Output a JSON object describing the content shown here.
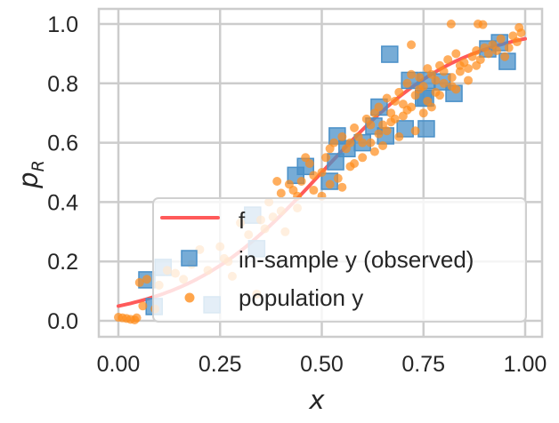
{
  "chart_data": {
    "type": "scatter",
    "title": "",
    "xlabel": "x",
    "ylabel": "p",
    "ylabel_subscript": "R",
    "xlim": [
      -0.05,
      1.04
    ],
    "ylim": [
      -0.05,
      1.05
    ],
    "grid": true,
    "xticks": [
      0.0,
      0.25,
      0.5,
      0.75,
      1.0
    ],
    "xtick_labels": [
      "0.00",
      "0.25",
      "0.50",
      "0.75",
      "1.00"
    ],
    "yticks": [
      0.0,
      0.2,
      0.4,
      0.6,
      0.8,
      1.0
    ],
    "ytick_labels": [
      "0.0",
      "0.2",
      "0.4",
      "0.6",
      "0.8",
      "1.0"
    ],
    "legend_position": "lower-right",
    "colors": {
      "f": "#ff5a5a",
      "in_sample": "#4a90c8",
      "population": "#ff8c1a",
      "grid": "#cccccc"
    },
    "series": [
      {
        "name": "f",
        "kind": "line",
        "model": "logistic",
        "midpoint": 0.5,
        "steepness": 5.9,
        "x": [
          0.0,
          0.05,
          0.1,
          0.15,
          0.2,
          0.25,
          0.3,
          0.35,
          0.4,
          0.45,
          0.5,
          0.55,
          0.6,
          0.65,
          0.7,
          0.75,
          0.8,
          0.85,
          0.9,
          0.95,
          1.0
        ],
        "y": [
          0.05,
          0.066,
          0.086,
          0.112,
          0.146,
          0.186,
          0.235,
          0.291,
          0.356,
          0.426,
          0.5,
          0.574,
          0.644,
          0.709,
          0.765,
          0.814,
          0.854,
          0.888,
          0.914,
          0.934,
          0.95
        ]
      },
      {
        "name": "in-sample y (observed)",
        "kind": "square",
        "x": [
          0.07,
          0.11,
          0.088,
          0.23,
          0.33,
          0.34,
          0.436,
          0.46,
          0.519,
          0.534,
          0.538,
          0.562,
          0.6,
          0.628,
          0.641,
          0.657,
          0.667,
          0.705,
          0.716,
          0.75,
          0.755,
          0.757,
          0.759,
          0.796,
          0.825,
          0.908,
          0.937,
          0.956
        ],
        "y": [
          0.138,
          0.18,
          0.048,
          0.054,
          0.356,
          0.243,
          0.49,
          0.52,
          0.47,
          0.536,
          0.623,
          0.58,
          0.6,
          0.656,
          0.72,
          0.623,
          0.898,
          0.647,
          0.81,
          0.75,
          0.751,
          0.647,
          0.81,
          0.805,
          0.766,
          0.916,
          0.937,
          0.874
        ]
      },
      {
        "name": "population y",
        "kind": "dot",
        "x": [
          0.0,
          0.01,
          0.02,
          0.03,
          0.04,
          0.045,
          0.052,
          0.07,
          0.06,
          0.09,
          0.12,
          0.14,
          0.1,
          0.16,
          0.18,
          0.2,
          0.175,
          0.22,
          0.25,
          0.27,
          0.3,
          0.26,
          0.28,
          0.32,
          0.35,
          0.36,
          0.38,
          0.34,
          0.37,
          0.4,
          0.42,
          0.41,
          0.43,
          0.45,
          0.44,
          0.47,
          0.48,
          0.46,
          0.5,
          0.51,
          0.52,
          0.53,
          0.54,
          0.55,
          0.56,
          0.57,
          0.58,
          0.59,
          0.6,
          0.61,
          0.62,
          0.63,
          0.64,
          0.65,
          0.66,
          0.67,
          0.68,
          0.69,
          0.7,
          0.71,
          0.72,
          0.73,
          0.74,
          0.75,
          0.76,
          0.77,
          0.78,
          0.79,
          0.8,
          0.81,
          0.82,
          0.83,
          0.84,
          0.85,
          0.86,
          0.87,
          0.88,
          0.89,
          0.9,
          0.91,
          0.92,
          0.93,
          0.94,
          0.95,
          0.96,
          0.97,
          0.98,
          0.99,
          0.6,
          0.62,
          0.64,
          0.66,
          0.68,
          0.7,
          0.72,
          0.74,
          0.76,
          0.78,
          0.8,
          0.82,
          0.84,
          0.86,
          0.88,
          0.58,
          0.63,
          0.67,
          0.71,
          0.73,
          0.77,
          0.79,
          0.83,
          0.55,
          0.57,
          0.65,
          0.69,
          0.75,
          0.818,
          0.884,
          0.896,
          0.72,
          0.985,
          0.5,
          0.48,
          0.52,
          0.44,
          0.4,
          0.39
        ],
        "y": [
          0.012,
          0.01,
          0.008,
          0.005,
          0.003,
          0.01,
          0.129,
          0.14,
          0.05,
          0.04,
          0.17,
          0.16,
          0.12,
          0.14,
          0.19,
          0.24,
          0.078,
          0.17,
          0.25,
          0.2,
          0.33,
          0.21,
          0.15,
          0.29,
          0.34,
          0.31,
          0.35,
          0.09,
          0.4,
          0.37,
          0.46,
          0.3,
          0.44,
          0.47,
          0.42,
          0.53,
          0.49,
          0.55,
          0.5,
          0.55,
          0.58,
          0.6,
          0.48,
          0.62,
          0.58,
          0.6,
          0.65,
          0.62,
          0.6,
          0.68,
          0.66,
          0.7,
          0.72,
          0.66,
          0.75,
          0.7,
          0.74,
          0.77,
          0.73,
          0.8,
          0.83,
          0.76,
          0.82,
          0.79,
          0.85,
          0.83,
          0.81,
          0.86,
          0.84,
          0.88,
          0.82,
          0.9,
          0.86,
          0.87,
          0.85,
          0.89,
          0.91,
          0.88,
          0.92,
          0.9,
          0.93,
          0.91,
          0.95,
          0.89,
          0.92,
          0.96,
          0.94,
          0.97,
          0.55,
          0.6,
          0.63,
          0.64,
          0.68,
          0.69,
          0.72,
          0.78,
          0.74,
          0.77,
          0.8,
          0.79,
          0.84,
          0.81,
          0.86,
          0.53,
          0.57,
          0.67,
          0.71,
          0.64,
          0.72,
          0.76,
          0.78,
          0.45,
          0.52,
          0.59,
          0.62,
          0.7,
          1.0,
          1.0,
          0.998,
          0.93,
          0.988,
          0.42,
          0.44,
          0.46,
          0.38,
          0.43,
          0.47
        ]
      }
    ]
  }
}
